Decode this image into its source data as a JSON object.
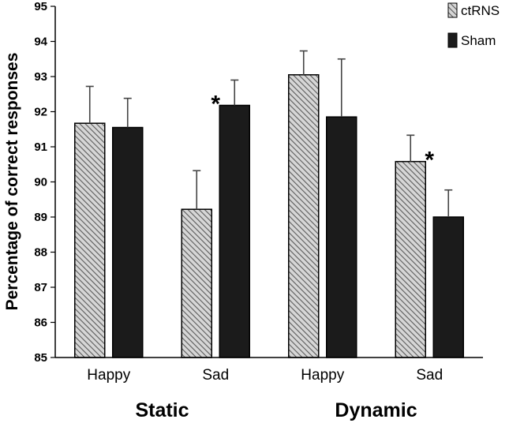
{
  "chart_data": {
    "type": "bar",
    "ylabel": "Percentage of correct responses",
    "xlabel": "",
    "title": "",
    "ylim": [
      85,
      95
    ],
    "ytick_step": 1,
    "grid": false,
    "legend_position": "top-right",
    "categories": [
      "Happy",
      "Sad",
      "Happy",
      "Sad"
    ],
    "groups": [
      {
        "label": "Static",
        "category_indices": [
          0,
          1
        ]
      },
      {
        "label": "Dynamic",
        "category_indices": [
          2,
          3
        ]
      }
    ],
    "series": [
      {
        "name": "ctRNS",
        "pattern": "hatched",
        "values": [
          91.67,
          89.22,
          93.05,
          90.58
        ],
        "errors": [
          1.05,
          1.1,
          0.68,
          0.75
        ]
      },
      {
        "name": "Sham",
        "pattern": "solid",
        "values": [
          91.55,
          92.18,
          91.85,
          89.0
        ],
        "errors": [
          0.83,
          0.72,
          1.65,
          0.77
        ]
      }
    ],
    "annotations": [
      {
        "text": "*",
        "category_index": 1,
        "between": "ctRNS-Sham"
      },
      {
        "text": "*",
        "category_index": 3,
        "between": "ctRNS-Sham"
      }
    ]
  },
  "colors": {
    "sham_fill": "#1b1b1b",
    "hatch_light": "#d6d6d6",
    "hatch_dark": "#5a5a5a",
    "stroke": "#000000",
    "error_bar": "#444444",
    "axis": "#000000"
  }
}
